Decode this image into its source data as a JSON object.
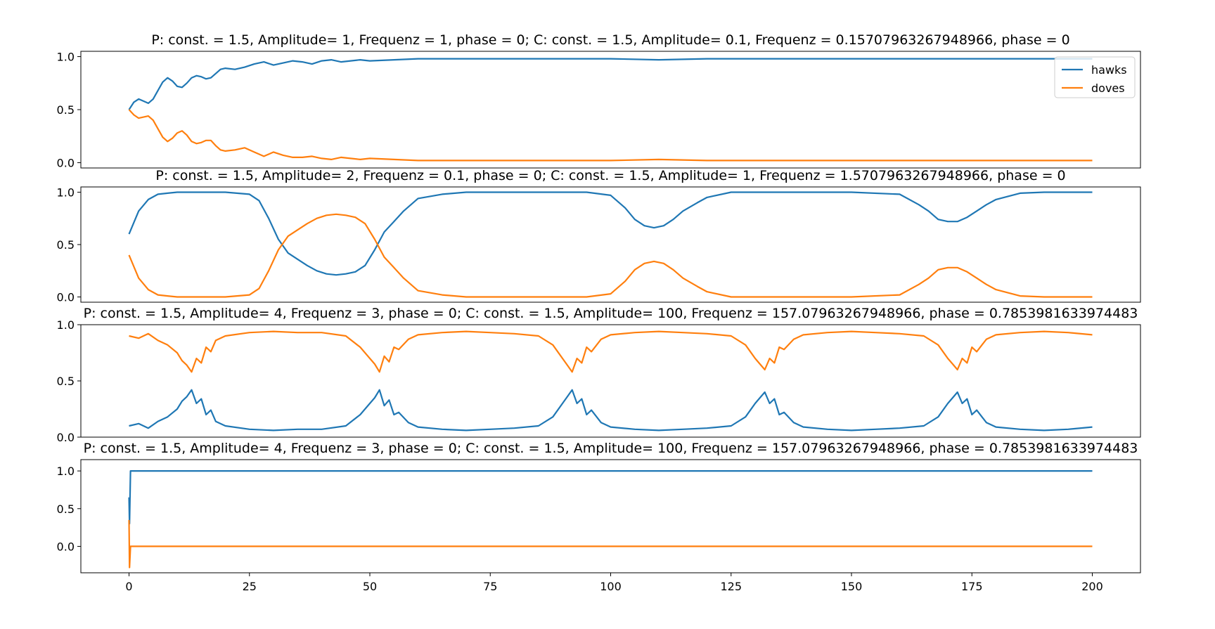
{
  "colors": {
    "hawks": "#1f77b4",
    "doves": "#ff7f0e"
  },
  "chart_data": [
    {
      "type": "line",
      "title": "P: const. = 1.5, Amplitude= 1, Frequenz = 1, phase = 0; C: const. = 1.5, Amplitude= 0.1, Frequenz = 0.15707963267948966, phase = 0",
      "xlim": [
        -10,
        210
      ],
      "ylim": [
        -0.05,
        1.05
      ],
      "yticks": [
        0.0,
        0.5,
        1.0
      ],
      "ytick_labels": [
        "0.0",
        "0.5",
        "1.0"
      ],
      "xticks": [],
      "xtick_labels": [],
      "legend": {
        "placement": "top-right",
        "entries": [
          "hawks",
          "doves"
        ]
      },
      "series": [
        {
          "name": "hawks",
          "color": "#1f77b4",
          "x": [
            0,
            1,
            2,
            3,
            4,
            5,
            6,
            7,
            8,
            9,
            10,
            11,
            12,
            13,
            14,
            15,
            16,
            17,
            18,
            19,
            20,
            22,
            24,
            26,
            28,
            30,
            32,
            34,
            36,
            38,
            40,
            42,
            44,
            46,
            48,
            50,
            55,
            60,
            65,
            70,
            75,
            80,
            90,
            100,
            110,
            120,
            130,
            140,
            150,
            160,
            170,
            180,
            190,
            200
          ],
          "y": [
            0.5,
            0.57,
            0.6,
            0.58,
            0.56,
            0.6,
            0.68,
            0.76,
            0.8,
            0.77,
            0.72,
            0.71,
            0.75,
            0.8,
            0.82,
            0.81,
            0.79,
            0.8,
            0.84,
            0.88,
            0.89,
            0.88,
            0.9,
            0.93,
            0.95,
            0.92,
            0.94,
            0.96,
            0.95,
            0.93,
            0.96,
            0.97,
            0.95,
            0.96,
            0.97,
            0.96,
            0.97,
            0.98,
            0.98,
            0.98,
            0.98,
            0.98,
            0.98,
            0.98,
            0.97,
            0.98,
            0.98,
            0.98,
            0.98,
            0.98,
            0.98,
            0.98,
            0.98,
            0.98
          ]
        },
        {
          "name": "doves",
          "color": "#ff7f0e",
          "x": [
            0,
            1,
            2,
            3,
            4,
            5,
            6,
            7,
            8,
            9,
            10,
            11,
            12,
            13,
            14,
            15,
            16,
            17,
            18,
            19,
            20,
            22,
            24,
            26,
            28,
            30,
            32,
            34,
            36,
            38,
            40,
            42,
            44,
            46,
            48,
            50,
            55,
            60,
            65,
            70,
            75,
            80,
            90,
            100,
            110,
            120,
            130,
            140,
            150,
            160,
            170,
            180,
            190,
            200
          ],
          "y": [
            0.5,
            0.45,
            0.42,
            0.43,
            0.44,
            0.4,
            0.32,
            0.24,
            0.2,
            0.23,
            0.28,
            0.3,
            0.26,
            0.2,
            0.18,
            0.19,
            0.21,
            0.21,
            0.16,
            0.12,
            0.11,
            0.12,
            0.14,
            0.1,
            0.06,
            0.1,
            0.07,
            0.05,
            0.05,
            0.06,
            0.04,
            0.03,
            0.05,
            0.04,
            0.03,
            0.04,
            0.03,
            0.02,
            0.02,
            0.02,
            0.02,
            0.02,
            0.02,
            0.02,
            0.03,
            0.02,
            0.02,
            0.02,
            0.02,
            0.02,
            0.02,
            0.02,
            0.02,
            0.02
          ]
        }
      ]
    },
    {
      "type": "line",
      "title": "P: const. = 1.5, Amplitude= 2, Frequenz = 0.1, phase = 0; C: const. = 1.5, Amplitude= 1, Frequenz = 1.5707963267948966, phase = 0",
      "xlim": [
        -10,
        210
      ],
      "ylim": [
        -0.05,
        1.05
      ],
      "yticks": [
        0.0,
        0.5,
        1.0
      ],
      "ytick_labels": [
        "0.0",
        "0.5",
        "1.0"
      ],
      "xticks": [],
      "xtick_labels": [],
      "series": [
        {
          "name": "hawks",
          "color": "#1f77b4",
          "x": [
            0,
            2,
            4,
            6,
            8,
            10,
            15,
            20,
            25,
            27,
            29,
            31,
            33,
            35,
            37,
            39,
            41,
            43,
            45,
            47,
            49,
            51,
            53,
            55,
            57,
            60,
            65,
            70,
            75,
            95,
            100,
            103,
            105,
            107,
            109,
            111,
            113,
            115,
            118,
            120,
            125,
            130,
            135,
            150,
            160,
            164,
            166,
            168,
            170,
            172,
            174,
            176,
            178,
            180,
            185,
            190,
            195,
            200
          ],
          "y": [
            0.6,
            0.82,
            0.93,
            0.98,
            0.99,
            1.0,
            1.0,
            1.0,
            0.98,
            0.92,
            0.75,
            0.55,
            0.42,
            0.36,
            0.3,
            0.25,
            0.22,
            0.21,
            0.22,
            0.24,
            0.3,
            0.45,
            0.62,
            0.72,
            0.82,
            0.94,
            0.98,
            1.0,
            1.0,
            1.0,
            0.97,
            0.85,
            0.74,
            0.68,
            0.66,
            0.68,
            0.74,
            0.82,
            0.9,
            0.95,
            1.0,
            1.0,
            1.0,
            1.0,
            0.98,
            0.88,
            0.82,
            0.74,
            0.72,
            0.72,
            0.76,
            0.82,
            0.88,
            0.93,
            0.99,
            1.0,
            1.0,
            1.0
          ]
        },
        {
          "name": "doves",
          "color": "#ff7f0e",
          "x": [
            0,
            2,
            4,
            6,
            8,
            10,
            15,
            20,
            25,
            27,
            29,
            31,
            33,
            35,
            37,
            39,
            41,
            43,
            45,
            47,
            49,
            51,
            53,
            55,
            57,
            60,
            65,
            70,
            75,
            95,
            100,
            103,
            105,
            107,
            109,
            111,
            113,
            115,
            118,
            120,
            125,
            130,
            135,
            150,
            160,
            164,
            166,
            168,
            170,
            172,
            174,
            176,
            178,
            180,
            185,
            190,
            195,
            200
          ],
          "y": [
            0.4,
            0.18,
            0.07,
            0.02,
            0.01,
            0.0,
            0.0,
            0.0,
            0.02,
            0.08,
            0.25,
            0.45,
            0.58,
            0.64,
            0.7,
            0.75,
            0.78,
            0.79,
            0.78,
            0.76,
            0.7,
            0.55,
            0.38,
            0.28,
            0.18,
            0.06,
            0.02,
            0.0,
            0.0,
            0.0,
            0.03,
            0.15,
            0.26,
            0.32,
            0.34,
            0.32,
            0.26,
            0.18,
            0.1,
            0.05,
            0.0,
            0.0,
            0.0,
            0.0,
            0.02,
            0.12,
            0.18,
            0.26,
            0.28,
            0.28,
            0.24,
            0.18,
            0.12,
            0.07,
            0.01,
            0.0,
            0.0,
            0.0
          ]
        }
      ]
    },
    {
      "type": "line",
      "title": "P: const. = 1.5, Amplitude= 4, Frequenz = 3, phase = 0; C: const. = 1.5, Amplitude= 100, Frequenz = 157.07963267948966, phase = 0.7853981633974483",
      "xlim": [
        -10,
        210
      ],
      "ylim": [
        0.0,
        1.0
      ],
      "yticks": [
        0.0,
        0.5,
        1.0
      ],
      "ytick_labels": [
        "0.0",
        "0.5",
        "1.0"
      ],
      "xticks": [],
      "xtick_labels": [],
      "series": [
        {
          "name": "hawks",
          "color": "#1f77b4",
          "x": [
            0,
            2,
            4,
            6,
            8,
            10,
            11,
            12,
            13,
            14,
            15,
            16,
            17,
            18,
            20,
            25,
            30,
            35,
            40,
            45,
            48,
            50,
            51,
            52,
            53,
            54,
            55,
            56,
            58,
            60,
            65,
            70,
            75,
            80,
            85,
            88,
            90,
            91,
            92,
            93,
            94,
            95,
            96,
            98,
            100,
            105,
            110,
            115,
            120,
            125,
            128,
            130,
            131,
            132,
            133,
            134,
            135,
            136,
            138,
            140,
            145,
            150,
            155,
            160,
            165,
            168,
            170,
            171,
            172,
            173,
            174,
            175,
            176,
            178,
            180,
            185,
            190,
            195,
            200
          ],
          "y": [
            0.1,
            0.12,
            0.08,
            0.14,
            0.18,
            0.25,
            0.32,
            0.36,
            0.42,
            0.3,
            0.34,
            0.2,
            0.24,
            0.14,
            0.1,
            0.07,
            0.06,
            0.07,
            0.07,
            0.1,
            0.2,
            0.3,
            0.35,
            0.42,
            0.28,
            0.33,
            0.2,
            0.22,
            0.13,
            0.09,
            0.07,
            0.06,
            0.07,
            0.08,
            0.1,
            0.18,
            0.3,
            0.36,
            0.42,
            0.3,
            0.34,
            0.2,
            0.24,
            0.13,
            0.09,
            0.07,
            0.06,
            0.07,
            0.08,
            0.1,
            0.18,
            0.3,
            0.35,
            0.4,
            0.3,
            0.34,
            0.2,
            0.22,
            0.13,
            0.09,
            0.07,
            0.06,
            0.07,
            0.08,
            0.1,
            0.18,
            0.3,
            0.35,
            0.4,
            0.3,
            0.34,
            0.2,
            0.24,
            0.13,
            0.09,
            0.07,
            0.06,
            0.07,
            0.09
          ]
        },
        {
          "name": "doves",
          "color": "#ff7f0e",
          "x": [
            0,
            2,
            4,
            6,
            8,
            10,
            11,
            12,
            13,
            14,
            15,
            16,
            17,
            18,
            20,
            25,
            30,
            35,
            40,
            45,
            48,
            50,
            51,
            52,
            53,
            54,
            55,
            56,
            58,
            60,
            65,
            70,
            75,
            80,
            85,
            88,
            90,
            91,
            92,
            93,
            94,
            95,
            96,
            98,
            100,
            105,
            110,
            115,
            120,
            125,
            128,
            130,
            131,
            132,
            133,
            134,
            135,
            136,
            138,
            140,
            145,
            150,
            155,
            160,
            165,
            168,
            170,
            171,
            172,
            173,
            174,
            175,
            176,
            178,
            180,
            185,
            190,
            195,
            200
          ],
          "y": [
            0.9,
            0.88,
            0.92,
            0.86,
            0.82,
            0.75,
            0.68,
            0.64,
            0.58,
            0.7,
            0.66,
            0.8,
            0.76,
            0.86,
            0.9,
            0.93,
            0.94,
            0.93,
            0.93,
            0.9,
            0.8,
            0.7,
            0.65,
            0.58,
            0.72,
            0.67,
            0.8,
            0.78,
            0.87,
            0.91,
            0.93,
            0.94,
            0.93,
            0.92,
            0.9,
            0.82,
            0.7,
            0.64,
            0.58,
            0.7,
            0.66,
            0.8,
            0.76,
            0.87,
            0.91,
            0.93,
            0.94,
            0.93,
            0.92,
            0.9,
            0.82,
            0.7,
            0.65,
            0.6,
            0.7,
            0.66,
            0.8,
            0.78,
            0.87,
            0.91,
            0.93,
            0.94,
            0.93,
            0.92,
            0.9,
            0.82,
            0.7,
            0.65,
            0.6,
            0.7,
            0.66,
            0.8,
            0.76,
            0.87,
            0.91,
            0.93,
            0.94,
            0.93,
            0.91
          ]
        }
      ]
    },
    {
      "type": "line",
      "title": "P: const. = 1.5, Amplitude= 4, Frequenz = 3, phase = 0; C: const. = 1.5, Amplitude= 100, Frequenz = 157.07963267948966, phase = 0.7853981633974483",
      "xlim": [
        -10,
        210
      ],
      "ylim": [
        -0.35,
        1.15
      ],
      "yticks": [
        0.0,
        0.5,
        1.0
      ],
      "ytick_labels": [
        "0.0",
        "0.5",
        "1.0"
      ],
      "xticks": [
        0,
        25,
        50,
        75,
        100,
        125,
        150,
        175,
        200
      ],
      "xtick_labels": [
        "0",
        "25",
        "50",
        "75",
        "100",
        "125",
        "150",
        "175",
        "200"
      ],
      "series": [
        {
          "name": "hawks",
          "color": "#1f77b4",
          "x": [
            0,
            0.1,
            0.3,
            0.5,
            200
          ],
          "y": [
            0.65,
            0.3,
            1.0,
            1.0,
            1.0
          ]
        },
        {
          "name": "doves",
          "color": "#ff7f0e",
          "x": [
            0,
            0.1,
            0.3,
            0.5,
            200
          ],
          "y": [
            0.35,
            -0.28,
            0.0,
            0.0,
            0.0
          ]
        }
      ]
    }
  ]
}
